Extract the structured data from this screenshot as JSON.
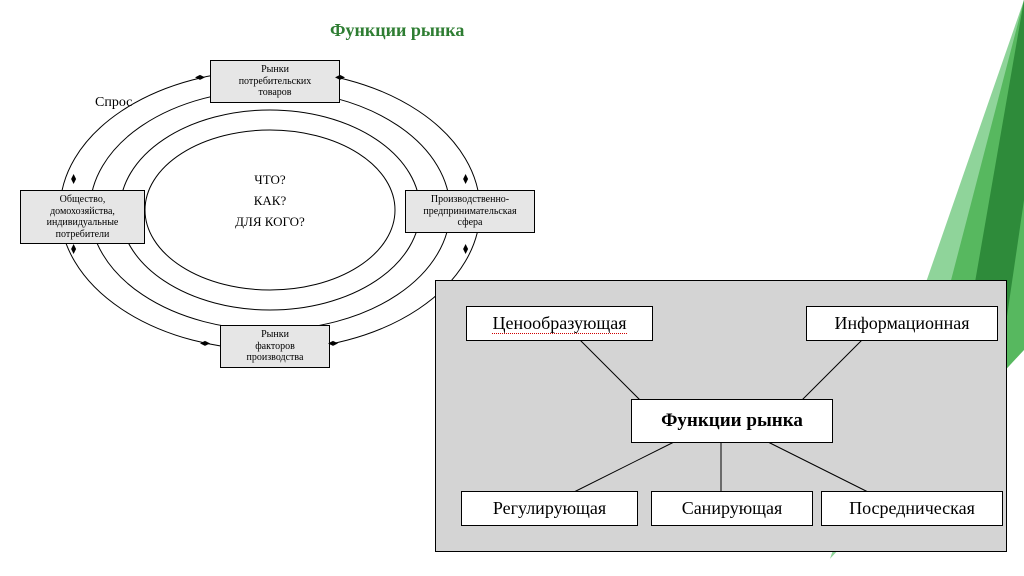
{
  "title": "Функции   рынка",
  "title_color": "#2e7d32",
  "circular": {
    "demand_label": "Спрос",
    "center_lines": [
      "ЧТО?",
      "КАК?",
      "ДЛЯ КОГО?"
    ],
    "nodes": {
      "top": "Рынки\nпотребительских\nтоваров",
      "left": "Общество,\nдомохозяйства,\nиндивидуальные\nпотребители",
      "right": "Произвoдственно-\nпредпринимательская\nсфера",
      "bottom": "Рынки\nфакторов\nпроизводства"
    },
    "node_bg": "#e6e6e6",
    "stroke": "#000000"
  },
  "functions_chart": {
    "type": "tree",
    "bg": "#d4d4d4",
    "box_bg": "#ffffff",
    "stroke": "#000000",
    "center": "Функции рынка",
    "top_left": "Ценообразующая",
    "top_right": "Информационная",
    "bottom_left": "Регулирующая",
    "bottom_mid": "Санирующая",
    "bottom_right": "Посредническая",
    "underline_color": "#d00000"
  },
  "deco": {
    "colors": [
      "#2e8b3a",
      "#57b85f",
      "#8fd49a",
      "#e2f3e5"
    ]
  }
}
